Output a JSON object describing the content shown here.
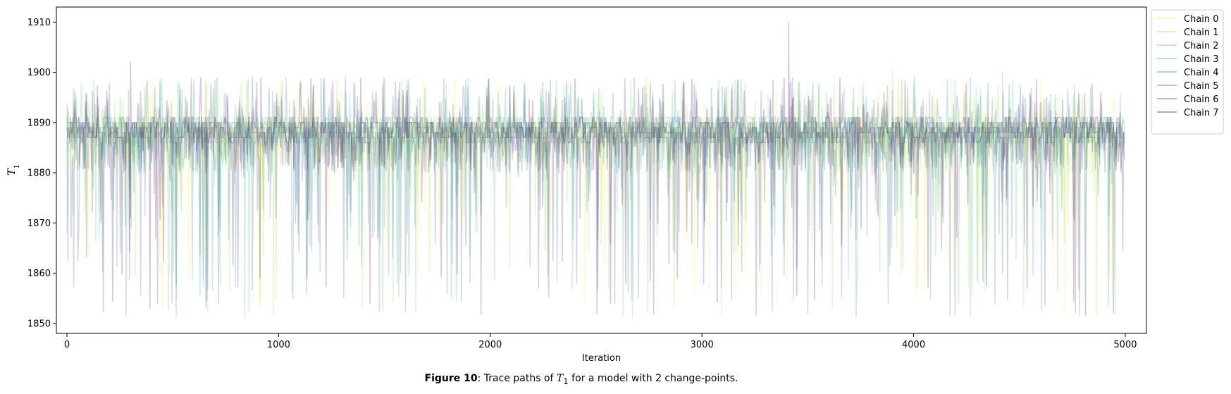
{
  "chart_data": {
    "type": "line",
    "title": "",
    "xlabel": "Iteration",
    "ylabel": "T_1",
    "ylabel_symbol": "T",
    "ylabel_subscript": "1",
    "xlim": [
      -50,
      5100
    ],
    "ylim": [
      1848,
      1913
    ],
    "x_ticks": [
      0,
      1000,
      2000,
      3000,
      4000,
      5000
    ],
    "y_ticks": [
      1850,
      1860,
      1870,
      1880,
      1890,
      1900,
      1910
    ],
    "n_iterations": 5000,
    "central_band": [
      1886,
      1891
    ],
    "lower_extreme": 1851,
    "notable_spikes": [
      {
        "series": "Chain 7",
        "x": 300,
        "y": 1902
      },
      {
        "series": "Chain 7",
        "x": 3410,
        "y": 1910
      },
      {
        "series": "Chain 1",
        "x": 3900,
        "y": 1901
      },
      {
        "series": "Chain 3",
        "x": 4420,
        "y": 1900
      }
    ],
    "legend_position": "upper-right-outside",
    "series": [
      {
        "name": "Chain 0",
        "color": "#fde725"
      },
      {
        "name": "Chain 1",
        "color": "#a0da39"
      },
      {
        "name": "Chain 2",
        "color": "#4ac16d"
      },
      {
        "name": "Chain 3",
        "color": "#1fa187"
      },
      {
        "name": "Chain 4",
        "color": "#277f8e"
      },
      {
        "name": "Chain 5",
        "color": "#365c8d"
      },
      {
        "name": "Chain 6",
        "color": "#46327e"
      },
      {
        "name": "Chain 7",
        "color": "#440154"
      }
    ]
  },
  "caption": {
    "label": "Figure 10",
    "text_before": ": Trace paths of ",
    "symbol": "T",
    "subscript": "1",
    "text_after": " for a model with 2 change-points."
  }
}
